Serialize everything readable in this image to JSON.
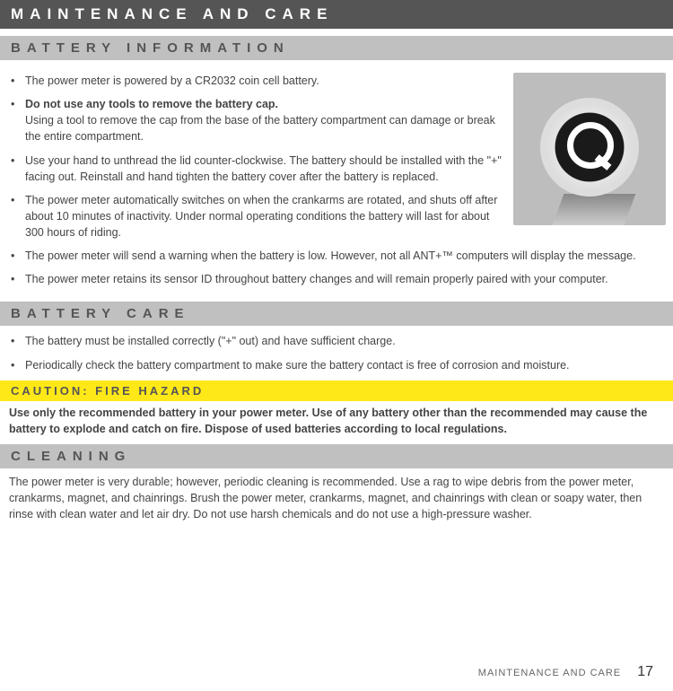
{
  "header": "MAINTENANCE AND CARE",
  "sections": {
    "battery_info": {
      "title": "BATTERY INFORMATION",
      "items": [
        {
          "text": "The power meter is powered by a CR2032 coin cell battery."
        },
        {
          "bold_lead": "Do not use any tools to remove the battery cap.",
          "rest": "Using a tool to remove the cap from the base of the battery compartment can damage or break the entire compartment."
        },
        {
          "text": "Use your hand to unthread the lid counter-clockwise. The battery should be installed with the \"+\" facing out. Reinstall and hand tighten the battery cover after the battery is replaced."
        },
        {
          "text": "The power meter automatically switches on when the crankarms are rotated, and shuts off after about 10 minutes of inactivity. Under normal operating conditions the battery will last for about 300 hours of riding."
        },
        {
          "text": "The power meter will send a warning when the battery is low. However, not all ANT+™ computers will display the message."
        },
        {
          "text": "The power meter retains its sensor ID throughout battery changes and will remain properly paired with your computer."
        }
      ]
    },
    "battery_care": {
      "title": "BATTERY CARE",
      "items": [
        {
          "text": "The battery must be installed correctly (\"+\" out) and have sufficient charge."
        },
        {
          "text": "Periodically check the battery compartment to make sure the battery contact is free of corrosion and moisture."
        }
      ]
    },
    "caution": {
      "title": "CAUTION: FIRE HAZARD",
      "body": "Use only the recommended battery in your power meter. Use of any battery other than the recommended may cause the battery to explode and catch on fire. Dispose of used batteries according to local regulations."
    },
    "cleaning": {
      "title": "CLEANING",
      "body": "The power meter is very durable; however, periodic cleaning is recommended. Use a rag to wipe debris from the power meter, crankarms, magnet, and chainrings. Brush the power meter, crankarms, magnet, and chainrings with clean or soapy water, then rinse with clean water and let air dry. Do not use harsh chemicals and do not use a high-pressure washer."
    }
  },
  "footer": {
    "label": "MAINTENANCE AND CARE",
    "page": "17"
  },
  "colors": {
    "header_bg": "#555555",
    "section_bg": "#c0c0c0",
    "caution_bg": "#ffe817",
    "text": "#444444"
  }
}
